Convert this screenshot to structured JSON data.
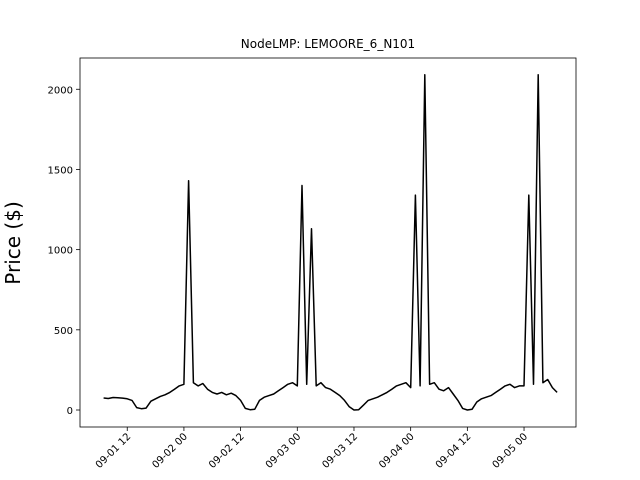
{
  "chart_data": {
    "type": "line",
    "title": "NodeLMP: LEMOORE_6_N101",
    "y_label": "Price ($)",
    "x": [
      "09-01 07",
      "09-01 08",
      "09-01 09",
      "09-01 10",
      "09-01 11",
      "09-01 12",
      "09-01 13",
      "09-01 14",
      "09-01 15",
      "09-01 16",
      "09-01 17",
      "09-01 18",
      "09-01 19",
      "09-01 20",
      "09-01 21",
      "09-01 22",
      "09-01 23",
      "09-02 00",
      "09-02 01",
      "09-02 02",
      "09-02 03",
      "09-02 04",
      "09-02 05",
      "09-02 06",
      "09-02 07",
      "09-02 08",
      "09-02 09",
      "09-02 10",
      "09-02 11",
      "09-02 12",
      "09-02 13",
      "09-02 14",
      "09-02 15",
      "09-02 16",
      "09-02 17",
      "09-02 18",
      "09-02 19",
      "09-02 20",
      "09-02 21",
      "09-02 22",
      "09-02 23",
      "09-03 00",
      "09-03 01",
      "09-03 02",
      "09-03 03",
      "09-03 04",
      "09-03 05",
      "09-03 06",
      "09-03 07",
      "09-03 08",
      "09-03 09",
      "09-03 10",
      "09-03 11",
      "09-03 12",
      "09-03 13",
      "09-03 14",
      "09-03 15",
      "09-03 16",
      "09-03 17",
      "09-03 18",
      "09-03 19",
      "09-03 20",
      "09-03 21",
      "09-03 22",
      "09-03 23",
      "09-04 00",
      "09-04 01",
      "09-04 02",
      "09-04 03",
      "09-04 04",
      "09-04 05",
      "09-04 06",
      "09-04 07",
      "09-04 08",
      "09-04 09",
      "09-04 10",
      "09-04 11",
      "09-04 12",
      "09-04 13",
      "09-04 14",
      "09-04 15",
      "09-04 16",
      "09-04 17",
      "09-04 18",
      "09-04 19",
      "09-04 20",
      "09-04 21",
      "09-04 22",
      "09-04 23",
      "09-05 00",
      "09-05 01",
      "09-05 02",
      "09-05 03",
      "09-05 04",
      "09-05 05",
      "09-05 06",
      "09-05 07"
    ],
    "series": [
      {
        "color": "#000000",
        "values": [
          75,
          72,
          78,
          76,
          74,
          70,
          60,
          15,
          8,
          12,
          55,
          70,
          85,
          95,
          110,
          130,
          150,
          160,
          1430,
          170,
          150,
          165,
          130,
          110,
          100,
          110,
          95,
          105,
          90,
          60,
          10,
          2,
          5,
          60,
          80,
          90,
          100,
          120,
          140,
          160,
          170,
          150,
          1400,
          160,
          1130,
          150,
          170,
          140,
          130,
          110,
          90,
          60,
          20,
          0,
          2,
          30,
          60,
          70,
          80,
          95,
          110,
          130,
          150,
          160,
          170,
          140,
          1340,
          150,
          2090,
          160,
          170,
          130,
          120,
          140,
          100,
          60,
          10,
          0,
          5,
          50,
          70,
          80,
          90,
          110,
          130,
          150,
          160,
          140,
          150,
          150,
          1340,
          160,
          2090,
          170,
          190,
          140,
          110
        ]
      }
    ],
    "xlim": [
      "09-01 02",
      "09-05 11"
    ],
    "xticks": [
      "09-01 12",
      "09-02 00",
      "09-02 12",
      "09-03 00",
      "09-03 12",
      "09-04 00",
      "09-04 12",
      "09-05 00"
    ],
    "ylim": [
      -106,
      2195
    ],
    "yticks": [
      0,
      500,
      1000,
      1500,
      2000
    ]
  }
}
